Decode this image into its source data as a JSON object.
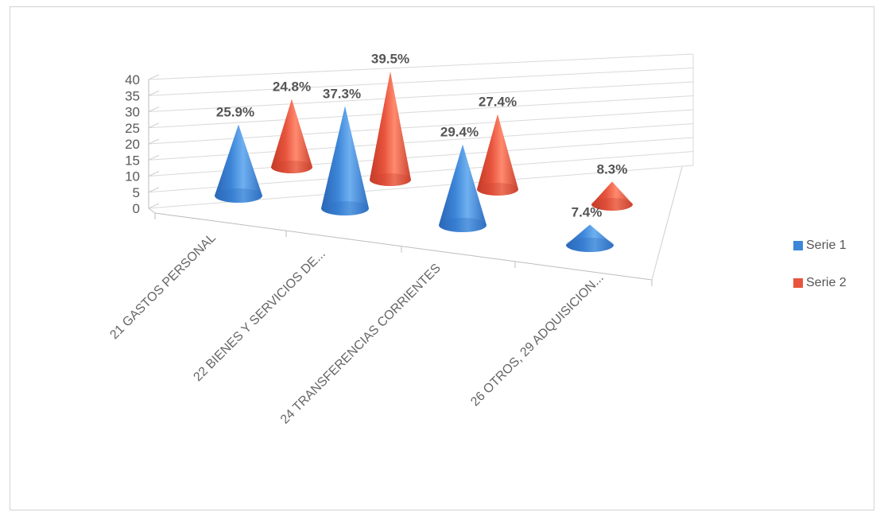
{
  "chart_data": {
    "type": "bar",
    "shape": "cone-3d",
    "categories": [
      "21 GASTOS PERSONAL",
      "22 BIENES Y SERVICIOS DE...",
      "24 TRANSFERENCIAS CORRIENTES",
      "26 OTROS, 29 ADQUISICION..."
    ],
    "series": [
      {
        "name": "Serie 1",
        "values": [
          25.9,
          37.3,
          29.4,
          7.4
        ],
        "labels": [
          "25.9%",
          "37.3%",
          "29.4%",
          "7.4%"
        ],
        "color": "#3d86d8"
      },
      {
        "name": "Serie 2",
        "values": [
          24.8,
          39.5,
          27.4,
          8.3
        ],
        "labels": [
          "24.8%",
          "39.5%",
          "27.4%",
          "8.3%"
        ],
        "color": "#e8543e"
      }
    ],
    "ylim": [
      0,
      40
    ],
    "yticks": [
      "0",
      "5",
      "10",
      "15",
      "20",
      "25",
      "30",
      "35",
      "40"
    ],
    "grid": true,
    "legend_position": "right"
  }
}
